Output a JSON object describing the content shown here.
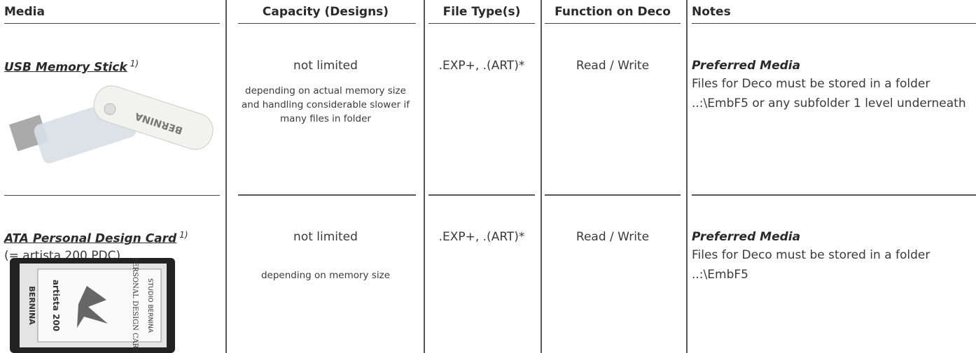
{
  "header": {
    "columns": [
      "Media",
      "Capacity (Designs)",
      "File Type(s)",
      "Function on Deco",
      "Notes"
    ]
  },
  "rows": [
    {
      "media": "USB Memory Stick",
      "footnote": "1)",
      "media_note": null,
      "image_text": [
        "BERNINA"
      ],
      "capacity": "not limited",
      "capacity_note": "depending on actual memory size and handling considerable slower if many files in folder",
      "file_types": ".EXP+, .(ART)*",
      "function": "Read / Write",
      "notes_title": "Preferred Media",
      "notes": "Files for Deco must be stored in a folder ..:\\EmbF5 or any subfolder 1 level underneath"
    },
    {
      "media": "ATA Personal Design Card",
      "footnote": "1)",
      "media_note": "(= artista 200 PDC)",
      "image_text": [
        "STUDIO BERNINA",
        "PERSONAL DESIGN CARD",
        "artista 200",
        "BERNINA"
      ],
      "capacity": "not limited",
      "capacity_note": "depending on memory size",
      "file_types": ".EXP+, .(ART)*",
      "function": "Read / Write",
      "notes_title": "Preferred Media",
      "notes": "Files for Deco must be stored in a folder ..:\\EmbF5"
    }
  ]
}
